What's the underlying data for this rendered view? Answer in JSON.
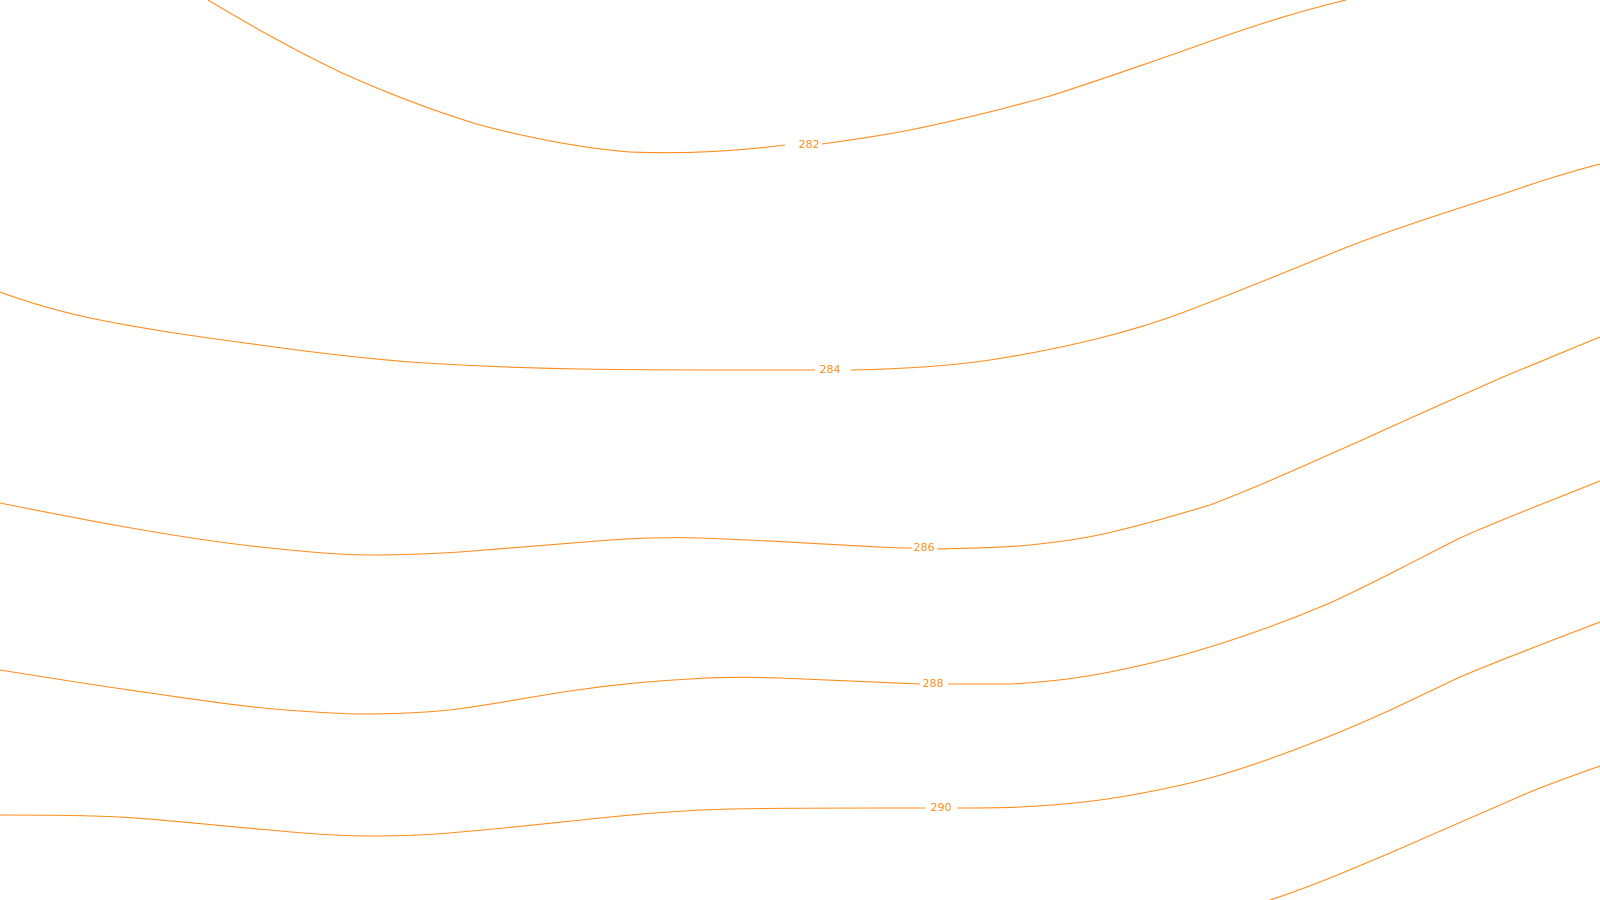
{
  "map": {
    "line_color": "#ff8c1a",
    "background_color": "#ffffff",
    "contours": [
      {
        "id": "c282",
        "label": "282"
      },
      {
        "id": "c284",
        "label": "284"
      },
      {
        "id": "c286",
        "label": "286"
      },
      {
        "id": "c288",
        "label": "288"
      },
      {
        "id": "c290",
        "label": "290"
      },
      {
        "id": "c292",
        "label": ""
      }
    ]
  }
}
